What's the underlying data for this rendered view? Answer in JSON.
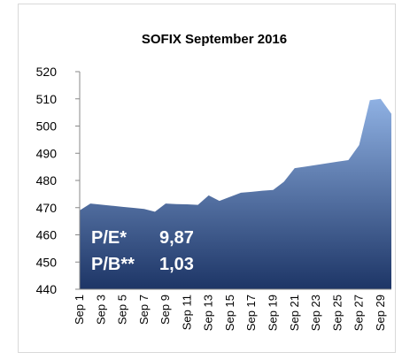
{
  "chart_data": {
    "type": "area",
    "title": "SOFIX September 2016",
    "categories": [
      "Sep 1",
      null,
      "Sep 3",
      null,
      "Sep 5",
      null,
      "Sep 7",
      null,
      "Sep 9",
      null,
      "Sep 11",
      null,
      "Sep 13",
      null,
      "Sep 15",
      null,
      "Sep 17",
      null,
      "Sep 19",
      null,
      "Sep 21",
      null,
      "Sep 23",
      null,
      "Sep 25",
      null,
      "Sep 27",
      null,
      "Sep 29",
      null
    ],
    "values": [
      469,
      471.5,
      471.1,
      470.7,
      470.3,
      469.9,
      469.5,
      468.5,
      471.5,
      471.3,
      471.2,
      471,
      474.5,
      472.5,
      474,
      475.5,
      475.8,
      476.2,
      476.5,
      479.5,
      484.5,
      485.1,
      485.7,
      486.3,
      486.9,
      487.5,
      493,
      509.5,
      510,
      504.5
    ],
    "color": "#8fb1e3",
    "ylim": [
      440,
      520
    ],
    "yticks": [
      440,
      450,
      460,
      470,
      480,
      490,
      500,
      510,
      520
    ],
    "annotations": [
      [
        "P/E*",
        "9,87"
      ],
      [
        "P/B**",
        "1,03"
      ]
    ]
  }
}
